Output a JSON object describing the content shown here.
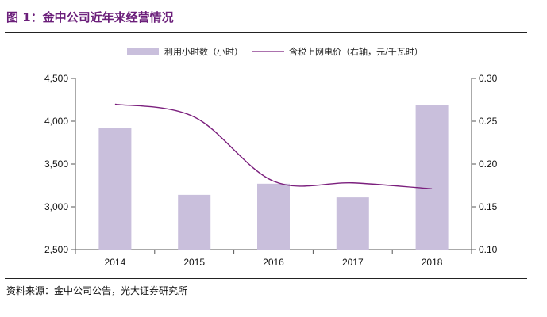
{
  "figure": {
    "title": "图 1：金中公司近年来经营情况",
    "source": "资料来源：金中公司公告，光大证券研究所"
  },
  "colors": {
    "title": "#6b1f7a",
    "bar": "#c9bfdc",
    "line": "#7b1f7d"
  },
  "chart_data": {
    "type": "bar",
    "categories": [
      "2014",
      "2015",
      "2016",
      "2017",
      "2018"
    ],
    "series": [
      {
        "name": "利用小时数（小时）",
        "type": "bar",
        "axis": "left",
        "values": [
          3920,
          3140,
          3270,
          3110,
          4190
        ]
      },
      {
        "name": "含税上网电价（右轴，元/千瓦时）",
        "type": "line",
        "axis": "right",
        "values": [
          0.27,
          0.255,
          0.18,
          0.178,
          0.171
        ]
      }
    ],
    "y_left": {
      "min": 2500,
      "max": 4500,
      "ticks": [
        "2,500",
        "3,000",
        "3,500",
        "4,000",
        "4,500"
      ]
    },
    "y_right": {
      "min": 0.1,
      "max": 0.3,
      "ticks": [
        "0.10",
        "0.15",
        "0.20",
        "0.25",
        "0.30"
      ]
    },
    "grid": false,
    "legend_position": "top"
  }
}
